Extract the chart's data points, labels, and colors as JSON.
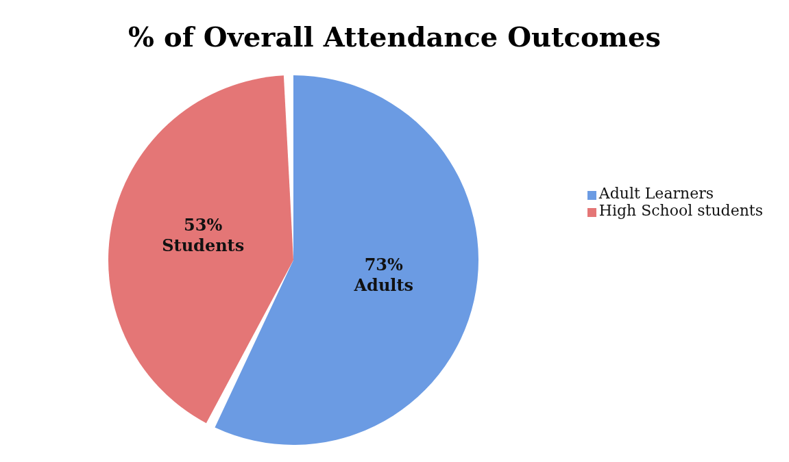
{
  "chart_data": {
    "type": "pie",
    "title": "% of Overall Attendance Outcomes",
    "categories": [
      "Adult Learners",
      "High School students"
    ],
    "values": [
      73,
      53
    ],
    "colors": [
      "#6b9be3",
      "#e47676"
    ],
    "value_labels": [
      "73%\nAdults",
      "53%\nStudents"
    ],
    "legend": "right"
  }
}
